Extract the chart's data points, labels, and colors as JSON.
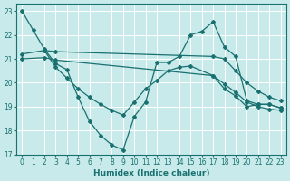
{
  "xlabel": "Humidex (Indice chaleur)",
  "bg_color": "#c8eaea",
  "line_color": "#1a7070",
  "grid_color": "#ffffff",
  "xlim": [
    -0.5,
    23.5
  ],
  "ylim": [
    17,
    23.3
  ],
  "yticks": [
    17,
    18,
    19,
    20,
    21,
    22,
    23
  ],
  "xticks": [
    0,
    1,
    2,
    3,
    4,
    5,
    6,
    7,
    8,
    9,
    10,
    11,
    12,
    13,
    14,
    15,
    16,
    17,
    18,
    19,
    20,
    21,
    22,
    23
  ],
  "lines": [
    {
      "x": [
        0,
        1,
        2,
        3,
        4,
        5,
        6,
        7,
        8,
        9,
        10,
        11,
        12,
        13,
        14,
        15,
        16,
        17,
        18,
        19,
        20,
        21,
        22,
        23
      ],
      "y": [
        23.0,
        22.2,
        21.4,
        20.8,
        20.55,
        19.4,
        18.4,
        17.8,
        17.4,
        17.2,
        18.6,
        19.2,
        20.85,
        20.85,
        21.1,
        22.0,
        22.15,
        22.55,
        21.5,
        21.1,
        19.25,
        19.1,
        19.1,
        18.95
      ]
    },
    {
      "x": [
        0,
        2,
        3,
        17,
        18,
        19,
        20,
        21,
        22,
        23
      ],
      "y": [
        21.2,
        21.35,
        21.3,
        21.1,
        21.0,
        20.5,
        20.0,
        19.65,
        19.4,
        19.25
      ]
    },
    {
      "x": [
        0,
        2,
        3,
        17,
        18,
        19,
        20,
        21,
        22,
        23
      ],
      "y": [
        21.0,
        21.05,
        20.95,
        20.3,
        19.95,
        19.6,
        19.2,
        19.0,
        18.9,
        18.85
      ]
    },
    {
      "x": [
        2,
        3,
        4,
        5,
        6,
        7,
        8,
        9,
        10,
        11,
        12,
        13,
        14,
        15,
        17,
        18,
        19,
        20,
        21,
        22,
        23
      ],
      "y": [
        21.35,
        20.65,
        20.2,
        19.75,
        19.4,
        19.1,
        18.85,
        18.65,
        19.2,
        19.75,
        20.1,
        20.5,
        20.65,
        20.7,
        20.3,
        19.75,
        19.45,
        19.0,
        19.1,
        19.1,
        18.95
      ]
    }
  ]
}
